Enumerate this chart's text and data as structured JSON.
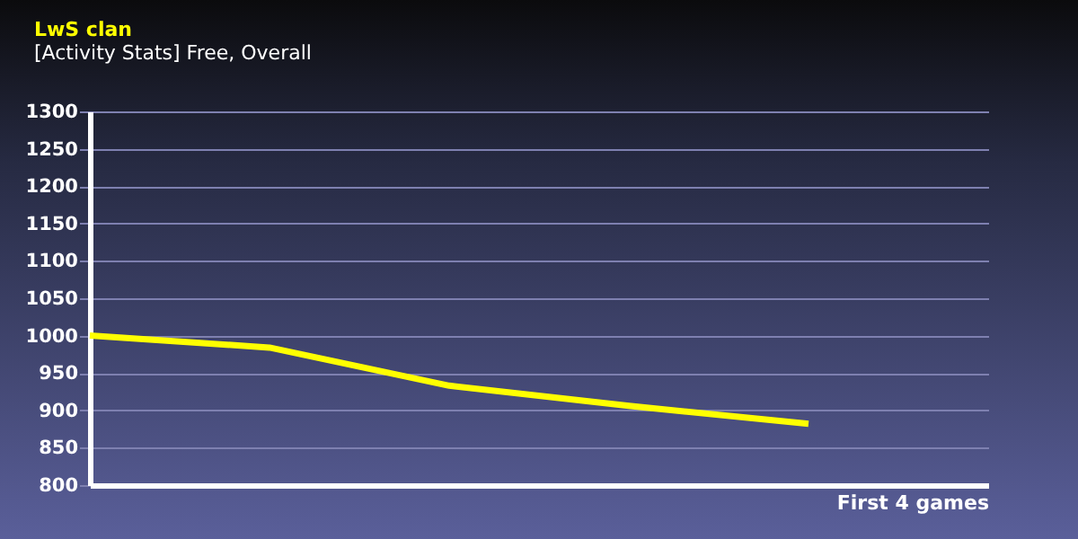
{
  "chart_data": {
    "type": "line",
    "title": "LwS clan",
    "subtitle": "[Activity Stats] Free, Overall",
    "xlabel": "First 4 games",
    "categories": [
      null,
      null,
      null,
      null,
      null,
      null
    ],
    "series": [
      {
        "color": "#ffff00",
        "values": [
          1000,
          984,
          933,
          906,
          882,
          null
        ]
      }
    ],
    "ylim": [
      800,
      1300
    ],
    "yticks": [
      800,
      850,
      900,
      950,
      1000,
      1050,
      1100,
      1150,
      1200,
      1250,
      1300
    ],
    "grid": "y",
    "tick_labels": "y",
    "marker": "none",
    "line_style": "solid"
  }
}
